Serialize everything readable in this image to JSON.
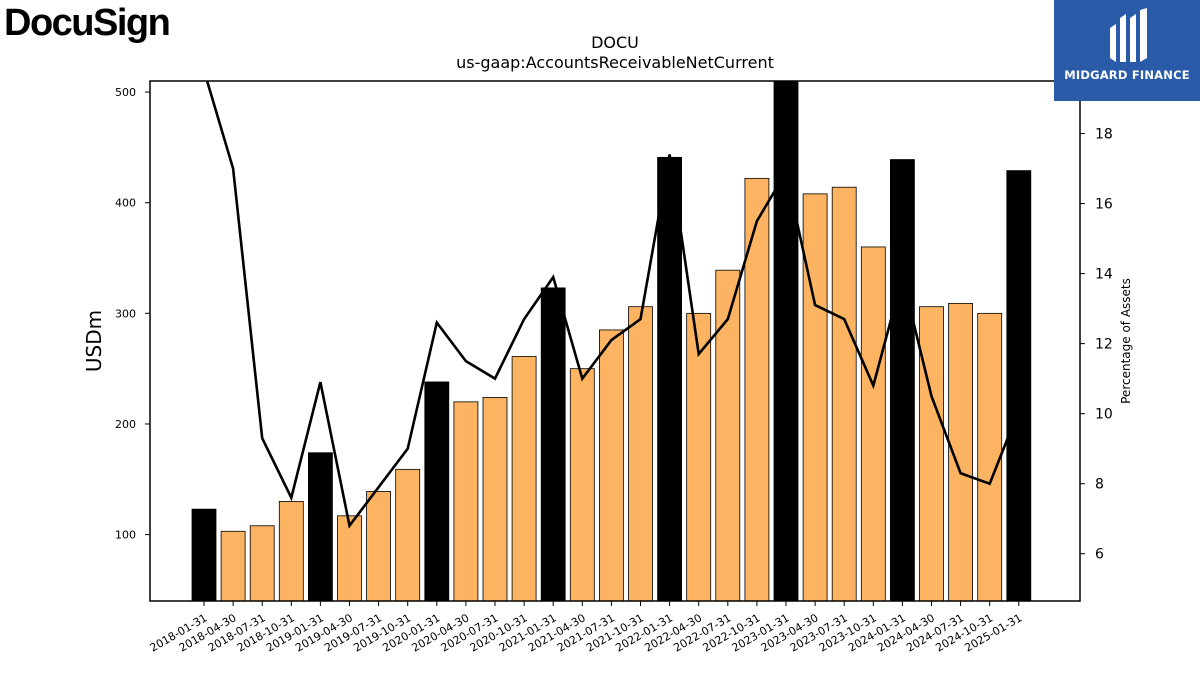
{
  "brand": {
    "logo_text": "DocuSign",
    "badge_text": "MIDGARD FINANCE",
    "badge_color": "#2a5ba8"
  },
  "chart_data": {
    "type": "bar",
    "title": "DOCU",
    "subtitle": "us-gaap:AccountsReceivableNetCurrent",
    "ylabel": "USDm",
    "y2label": "Percentage of Assets",
    "ylim": [
      40,
      510
    ],
    "y2lim": [
      4.65,
      19.5
    ],
    "yticks": [
      100,
      200,
      300,
      400,
      500
    ],
    "y2ticks": [
      6,
      8,
      10,
      12,
      14,
      16,
      18
    ],
    "categories": [
      "2018-01-31",
      "2018-04-30",
      "2018-07-31",
      "2018-10-31",
      "2019-01-31",
      "2019-04-30",
      "2019-07-31",
      "2019-10-31",
      "2020-01-31",
      "2020-04-30",
      "2020-07-31",
      "2020-10-31",
      "2021-01-31",
      "2021-04-30",
      "2021-07-31",
      "2021-10-31",
      "2022-01-31",
      "2022-04-30",
      "2022-07-31",
      "2022-10-31",
      "2023-01-31",
      "2023-04-30",
      "2023-07-31",
      "2023-10-31",
      "2024-01-31",
      "2024-04-30",
      "2024-07-31",
      "2024-10-31",
      "2025-01-31"
    ],
    "series": [
      {
        "type": "bar",
        "values": [
          123,
          103,
          108,
          130,
          174,
          117,
          139,
          159,
          238,
          220,
          224,
          261,
          323,
          250,
          285,
          306,
          441,
          300,
          339,
          422,
          510,
          408,
          414,
          360,
          439,
          306,
          309,
          300,
          429
        ]
      },
      {
        "type": "line",
        "axis": "right",
        "values": [
          19.8,
          17.0,
          9.3,
          7.6,
          10.9,
          6.8,
          7.9,
          9.0,
          12.6,
          11.5,
          11.0,
          12.7,
          13.9,
          11.0,
          12.1,
          12.7,
          17.4,
          11.7,
          12.7,
          15.5,
          16.9,
          13.1,
          12.7,
          10.8,
          13.9,
          10.5,
          8.3,
          8.0,
          10.1
        ]
      }
    ],
    "colors": {
      "bar_fiscal_q4": "#000000",
      "bar_other": "#fdb462",
      "line": "#000000"
    },
    "grid": false
  }
}
